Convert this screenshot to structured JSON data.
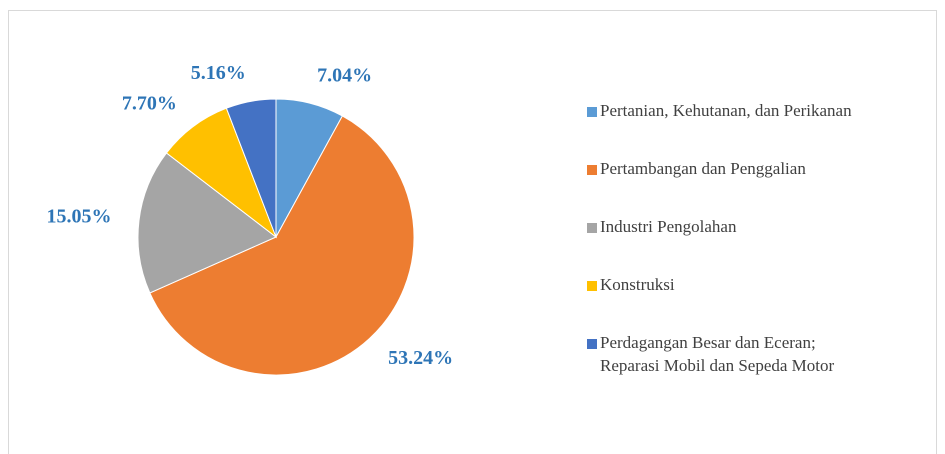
{
  "chart_data": {
    "type": "pie",
    "categories": [
      "Pertanian, Kehutanan, dan Perikanan",
      "Pertambangan dan Penggalian",
      "Industri Pengolahan",
      "Konstruksi",
      "Perdagangan Besar dan Eceran;\nReparasi Mobil dan Sepeda Motor"
    ],
    "values": [
      7.04,
      53.24,
      15.05,
      7.7,
      5.16
    ],
    "value_labels": [
      "7.04%",
      "53.24%",
      "15.05%",
      "7.70%",
      "5.16%"
    ],
    "colors": [
      "#5b9bd5",
      "#ed7d31",
      "#a5a5a5",
      "#ffc000",
      "#4472c4"
    ],
    "legend": "right"
  }
}
